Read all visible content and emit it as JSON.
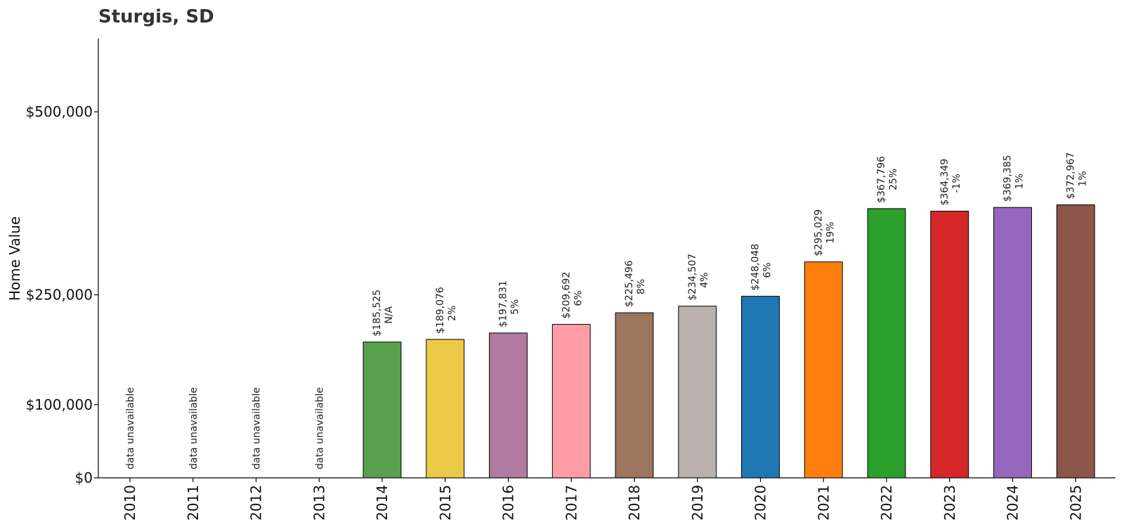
{
  "chart_data": {
    "type": "bar",
    "title": "Sturgis, SD",
    "ylabel": "Home Value",
    "xlabel": "",
    "ylim": [
      0,
      600000
    ],
    "yticks": [
      {
        "value": 0,
        "label": "$0"
      },
      {
        "value": 100000,
        "label": "$100,000"
      },
      {
        "value": 250000,
        "label": "$250,000"
      },
      {
        "value": 500000,
        "label": "$500,000"
      }
    ],
    "categories": [
      "2010",
      "2011",
      "2012",
      "2013",
      "2014",
      "2015",
      "2016",
      "2017",
      "2018",
      "2019",
      "2020",
      "2021",
      "2022",
      "2023",
      "2024",
      "2025"
    ],
    "values": [
      null,
      null,
      null,
      null,
      185525,
      189076,
      197831,
      209692,
      225496,
      234507,
      248048,
      295029,
      367796,
      364349,
      369385,
      372967
    ],
    "value_labels": [
      "data unavailable",
      "data unavailable",
      "data unavailable",
      "data unavailable",
      "$185,525",
      "$189,076",
      "$197,831",
      "$209,692",
      "$225,496",
      "$234,507",
      "$248,048",
      "$295,029",
      "$367,796",
      "$364,349",
      "$369,385",
      "$372,967"
    ],
    "change_labels": [
      "",
      "",
      "",
      "",
      "N/A",
      "2%",
      "5%",
      "6%",
      "8%",
      "4%",
      "6%",
      "19%",
      "25%",
      "-1%",
      "1%",
      "1%"
    ],
    "colors": [
      "#59a14f",
      "#59a14f",
      "#59a14f",
      "#59a14f",
      "#59a14f",
      "#edc948",
      "#b07aa1",
      "#ff9da7",
      "#9c755f",
      "#bab0ac",
      "#1f77b4",
      "#ff7f0e",
      "#2ca02c",
      "#d62728",
      "#9467bd",
      "#8c564b"
    ],
    "grid": false,
    "legend": "none"
  }
}
